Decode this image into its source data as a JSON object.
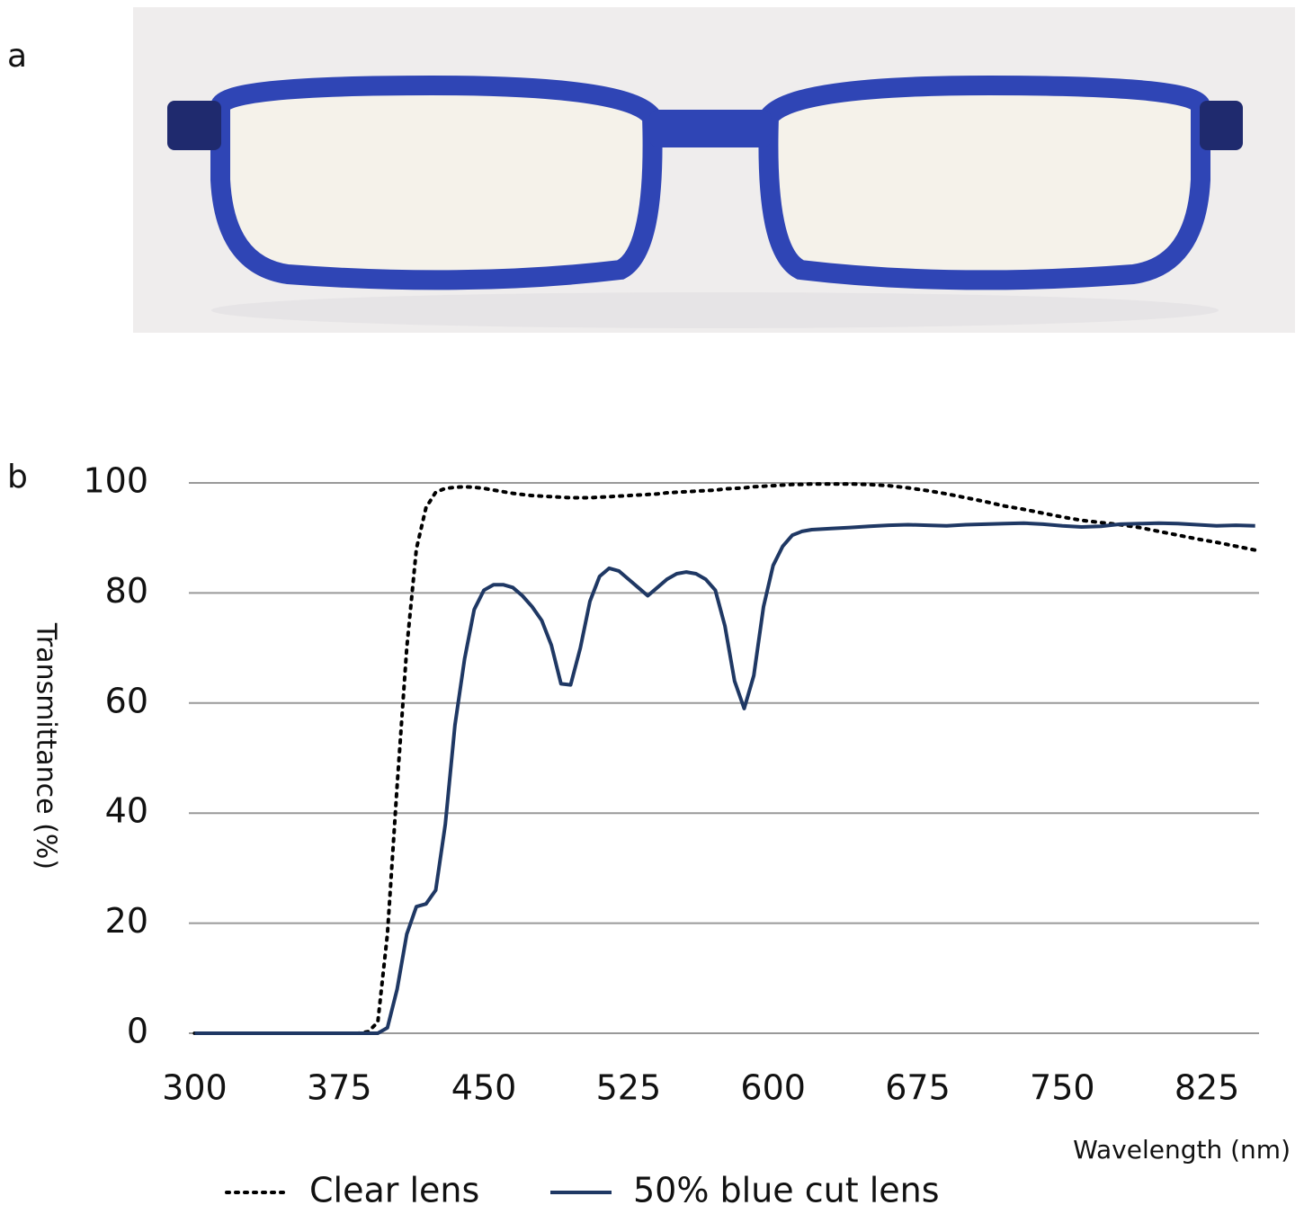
{
  "panel_labels": [
    "a",
    "b"
  ],
  "chart_data": {
    "type": "line",
    "x_label": "Wavelength (nm)",
    "y_label": "Transmittance (%)",
    "x": [
      300,
      310,
      320,
      330,
      340,
      350,
      360,
      370,
      380,
      385,
      390,
      395,
      400,
      405,
      410,
      415,
      420,
      425,
      430,
      435,
      440,
      445,
      450,
      455,
      460,
      465,
      470,
      475,
      480,
      485,
      490,
      495,
      500,
      505,
      510,
      515,
      520,
      525,
      530,
      535,
      540,
      545,
      550,
      555,
      560,
      565,
      570,
      575,
      580,
      585,
      590,
      595,
      600,
      605,
      610,
      615,
      620,
      630,
      640,
      650,
      660,
      670,
      680,
      690,
      700,
      710,
      720,
      730,
      740,
      750,
      760,
      770,
      780,
      790,
      800,
      810,
      820,
      830,
      840,
      850
    ],
    "series": [
      {
        "name": "Clear lens",
        "color": "#000000",
        "style": "dotted",
        "values": [
          0,
          0,
          0,
          0,
          0,
          0,
          0,
          0,
          0,
          0,
          0.3,
          2,
          18,
          45,
          70,
          88,
          95.5,
          98.3,
          99,
          99.2,
          99.3,
          99.2,
          99,
          98.7,
          98.4,
          98.1,
          97.9,
          97.7,
          97.6,
          97.5,
          97.4,
          97.3,
          97.3,
          97.3,
          97.4,
          97.5,
          97.6,
          97.7,
          97.8,
          97.9,
          98,
          98.2,
          98.3,
          98.4,
          98.5,
          98.6,
          98.7,
          98.9,
          99,
          99.1,
          99.3,
          99.4,
          99.5,
          99.6,
          99.7,
          99.7,
          99.8,
          99.8,
          99.8,
          99.7,
          99.5,
          99.1,
          98.6,
          98,
          97.3,
          96.6,
          95.8,
          95.2,
          94.5,
          93.8,
          93.2,
          92.8,
          92.4,
          91.9,
          91.2,
          90.5,
          89.8,
          89.2,
          88.5,
          87.8
        ]
      },
      {
        "name": "50% blue cut lens",
        "color": "#1f3864",
        "style": "solid",
        "values": [
          0,
          0,
          0,
          0,
          0,
          0,
          0,
          0,
          0,
          0,
          0,
          0,
          1,
          8,
          18,
          23,
          23.5,
          26,
          38,
          56,
          68,
          77,
          80.5,
          81.5,
          81.5,
          81,
          79.5,
          77.5,
          75,
          70.5,
          63.5,
          63.3,
          70,
          78.5,
          83,
          84.5,
          84,
          82.5,
          81,
          79.5,
          81,
          82.5,
          83.5,
          83.8,
          83.5,
          82.5,
          80.5,
          74,
          64,
          59,
          65,
          77.5,
          85,
          88.5,
          90.5,
          91.2,
          91.5,
          91.7,
          91.9,
          92.1,
          92.3,
          92.4,
          92.3,
          92.2,
          92.4,
          92.5,
          92.6,
          92.7,
          92.5,
          92.2,
          92,
          92.1,
          92.5,
          92.6,
          92.7,
          92.6,
          92.4,
          92.2,
          92.3,
          92.2
        ]
      }
    ],
    "xlim": [
      297,
      852
    ],
    "xticks": [
      300,
      375,
      450,
      525,
      600,
      675,
      750,
      825
    ],
    "ylim": [
      0,
      100
    ],
    "yticks": [
      0,
      20,
      40,
      60,
      80,
      100
    ],
    "grid": true
  }
}
